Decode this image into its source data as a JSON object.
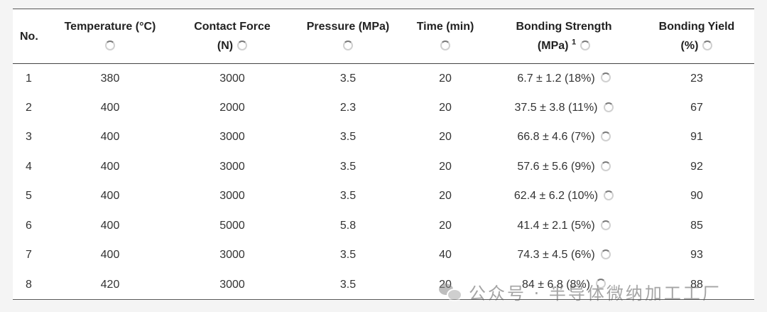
{
  "table": {
    "headers": {
      "no": "No.",
      "temperature": "Temperature (°C)",
      "contact_force_line1": "Contact Force",
      "contact_force_line2": "(N)",
      "pressure": "Pressure (MPa)",
      "time": "Time (min)",
      "bonding_strength_line1": "Bonding Strength",
      "bonding_strength_line2": "(MPa)",
      "bonding_strength_note": "1",
      "bonding_yield_line1": "Bonding Yield",
      "bonding_yield_line2": "(%)"
    },
    "rows": [
      {
        "no": "1",
        "temperature": "380",
        "contact_force": "3000",
        "pressure": "3.5",
        "time": "20",
        "bonding_strength": "6.7 ± 1.2 (18%)",
        "bonding_yield": "23"
      },
      {
        "no": "2",
        "temperature": "400",
        "contact_force": "2000",
        "pressure": "2.3",
        "time": "20",
        "bonding_strength": "37.5 ± 3.8 (11%)",
        "bonding_yield": "67"
      },
      {
        "no": "3",
        "temperature": "400",
        "contact_force": "3000",
        "pressure": "3.5",
        "time": "20",
        "bonding_strength": "66.8 ± 4.6 (7%)",
        "bonding_yield": "91"
      },
      {
        "no": "4",
        "temperature": "400",
        "contact_force": "3000",
        "pressure": "3.5",
        "time": "20",
        "bonding_strength": "57.6 ± 5.6 (9%)",
        "bonding_yield": "92"
      },
      {
        "no": "5",
        "temperature": "400",
        "contact_force": "3000",
        "pressure": "3.5",
        "time": "20",
        "bonding_strength": "62.4 ± 6.2 (10%)",
        "bonding_yield": "90"
      },
      {
        "no": "6",
        "temperature": "400",
        "contact_force": "5000",
        "pressure": "5.8",
        "time": "20",
        "bonding_strength": "41.4 ± 2.1 (5%)",
        "bonding_yield": "85"
      },
      {
        "no": "7",
        "temperature": "400",
        "contact_force": "3000",
        "pressure": "3.5",
        "time": "40",
        "bonding_strength": "74.3 ± 4.5 (6%)",
        "bonding_yield": "93"
      },
      {
        "no": "8",
        "temperature": "420",
        "contact_force": "3000",
        "pressure": "3.5",
        "time": "20",
        "bonding_strength": "84 ± 6.8 (8%)",
        "bonding_yield": "88"
      }
    ]
  },
  "watermark": {
    "logo_icon": "wechat-icon",
    "text": "公众号 · 半导体微纳加工工厂"
  }
}
